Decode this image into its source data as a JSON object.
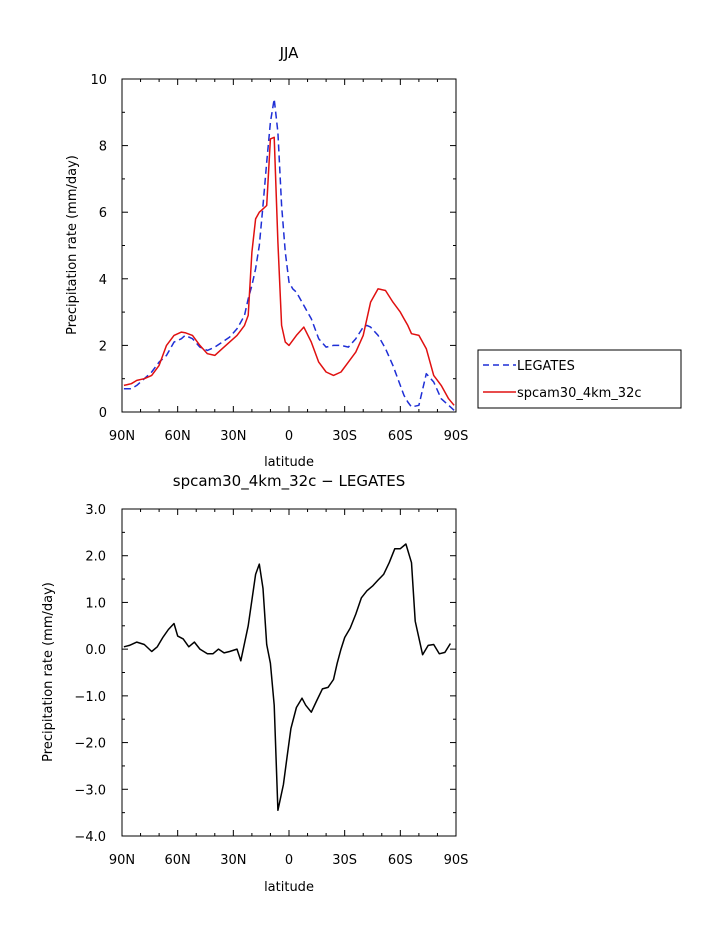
{
  "chart_data": [
    {
      "type": "line",
      "title": "JJA",
      "xlabel": "latitude",
      "ylabel": "Precipitation rate (mm/day)",
      "x_tick_labels": [
        "90N",
        "60N",
        "30N",
        "0",
        "30S",
        "60S",
        "90S"
      ],
      "x_ticks": [
        90,
        60,
        30,
        0,
        -30,
        -60,
        -90
      ],
      "xlim": [
        90,
        -90
      ],
      "y_tick_labels": [
        "0",
        "2",
        "4",
        "6",
        "8",
        "10"
      ],
      "y_ticks": [
        0,
        2,
        4,
        6,
        8,
        10
      ],
      "ylim": [
        0,
        10
      ],
      "legend_position": "right",
      "series": [
        {
          "name": "LEGATES",
          "color": "#1f2fd6",
          "dash": "dashed",
          "x": [
            89,
            85,
            82,
            78,
            74,
            70,
            66,
            62,
            58,
            56,
            52,
            48,
            44,
            40,
            36,
            32,
            28,
            26,
            24,
            22,
            20,
            18,
            16,
            14,
            12,
            10,
            8,
            6,
            4,
            2,
            0,
            -2,
            -4,
            -8,
            -12,
            -16,
            -20,
            -24,
            -28,
            -32,
            -36,
            -40,
            -42,
            -44,
            -48,
            -52,
            -56,
            -60,
            -62,
            -64,
            -66,
            -70,
            -74,
            -78,
            -82,
            -86,
            -89
          ],
          "y": [
            0.7,
            0.7,
            0.8,
            1.0,
            1.2,
            1.5,
            1.7,
            2.1,
            2.2,
            2.3,
            2.2,
            1.95,
            1.85,
            1.95,
            2.1,
            2.25,
            2.5,
            2.7,
            2.9,
            3.4,
            3.8,
            4.3,
            5.0,
            6.2,
            7.5,
            8.7,
            9.4,
            8.4,
            6.2,
            4.8,
            3.9,
            3.7,
            3.6,
            3.2,
            2.8,
            2.2,
            1.95,
            2.0,
            2.0,
            1.95,
            2.2,
            2.55,
            2.6,
            2.55,
            2.3,
            1.9,
            1.4,
            0.8,
            0.5,
            0.3,
            0.15,
            0.2,
            1.15,
            0.9,
            0.4,
            0.2,
            0.05
          ]
        },
        {
          "name": "spcam30_4km_32c",
          "color": "#e01010",
          "dash": "solid",
          "x": [
            89,
            85,
            82,
            78,
            74,
            70,
            66,
            62,
            58,
            56,
            52,
            48,
            44,
            40,
            36,
            32,
            28,
            26,
            24,
            22,
            20,
            18,
            16,
            14,
            12,
            10,
            8,
            6,
            4,
            2,
            0,
            -4,
            -8,
            -12,
            -16,
            -20,
            -24,
            -28,
            -32,
            -36,
            -40,
            -42,
            -44,
            -48,
            -52,
            -56,
            -60,
            -62,
            -64,
            -66,
            -70,
            -74,
            -78,
            -82,
            -86,
            -89
          ],
          "y": [
            0.8,
            0.85,
            0.95,
            1.0,
            1.1,
            1.4,
            2.0,
            2.3,
            2.4,
            2.38,
            2.3,
            2.0,
            1.75,
            1.7,
            1.9,
            2.1,
            2.3,
            2.45,
            2.6,
            2.9,
            4.8,
            5.8,
            6.0,
            6.1,
            6.2,
            8.2,
            8.25,
            5.1,
            2.6,
            2.1,
            2.0,
            2.3,
            2.55,
            2.1,
            1.5,
            1.2,
            1.1,
            1.2,
            1.5,
            1.8,
            2.3,
            2.8,
            3.3,
            3.7,
            3.65,
            3.3,
            3.0,
            2.8,
            2.6,
            2.35,
            2.3,
            1.9,
            1.1,
            0.8,
            0.4,
            0.2
          ]
        }
      ]
    },
    {
      "type": "line",
      "title": "spcam30_4km_32c − LEGATES",
      "xlabel": "latitude",
      "ylabel": "Precipitation rate (mm/day)",
      "x_tick_labels": [
        "90N",
        "60N",
        "30N",
        "0",
        "30S",
        "60S",
        "90S"
      ],
      "x_ticks": [
        90,
        60,
        30,
        0,
        -30,
        -60,
        -90
      ],
      "xlim": [
        90,
        -90
      ],
      "y_tick_labels": [
        "−4.0",
        "−3.0",
        "−2.0",
        "−1.0",
        "0.0",
        "1.0",
        "2.0",
        "3.0"
      ],
      "y_ticks": [
        -4,
        -3,
        -2,
        -1,
        0,
        1,
        2,
        3
      ],
      "ylim": [
        -4,
        3
      ],
      "series": [
        {
          "color": "#000000",
          "dash": "solid",
          "x": [
            89,
            86,
            82,
            78,
            74,
            71,
            68,
            65,
            62,
            60,
            57,
            54,
            51,
            48,
            44,
            41,
            38,
            35,
            32,
            28,
            26,
            22,
            18,
            16,
            14,
            12,
            10,
            8,
            6,
            3,
            1,
            -1,
            -4,
            -7,
            -9,
            -12,
            -15,
            -18,
            -21,
            -24,
            -26,
            -28,
            -30,
            -33,
            -36,
            -39,
            -42,
            -45,
            -48,
            -51,
            -54,
            -57,
            -60,
            -63,
            -66,
            -68,
            -72,
            -75,
            -78,
            -81,
            -84,
            -87
          ],
          "y": [
            0.05,
            0.08,
            0.15,
            0.1,
            -0.05,
            0.05,
            0.25,
            0.42,
            0.55,
            0.28,
            0.22,
            0.05,
            0.15,
            0.0,
            -0.1,
            -0.1,
            0.0,
            -0.08,
            -0.05,
            0.0,
            -0.25,
            0.5,
            1.6,
            1.82,
            1.3,
            0.1,
            -0.3,
            -1.2,
            -3.45,
            -2.9,
            -2.3,
            -1.7,
            -1.25,
            -1.05,
            -1.2,
            -1.35,
            -1.1,
            -0.85,
            -0.82,
            -0.65,
            -0.3,
            0.0,
            0.25,
            0.45,
            0.75,
            1.1,
            1.25,
            1.35,
            1.48,
            1.6,
            1.85,
            2.15,
            2.15,
            2.25,
            1.85,
            0.6,
            -0.12,
            0.08,
            0.1,
            -0.1,
            -0.07,
            0.12
          ]
        }
      ]
    }
  ]
}
